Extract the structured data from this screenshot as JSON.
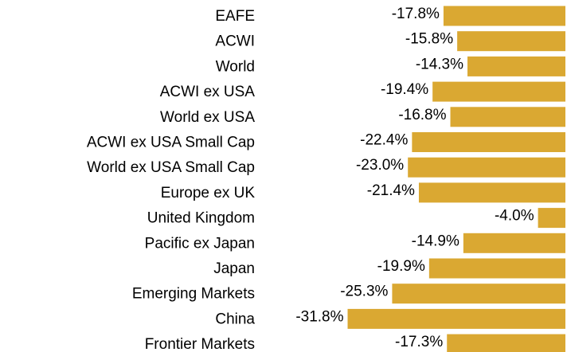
{
  "chart_data": {
    "type": "bar",
    "orientation": "horizontal",
    "categories": [
      "EAFE",
      "ACWI",
      "World",
      "ACWI ex USA",
      "World ex USA",
      "ACWI ex USA Small Cap",
      "World ex USA Small Cap",
      "Europe ex UK",
      "United Kingdom",
      "Pacific ex Japan",
      "Japan",
      "Emerging Markets",
      "China",
      "Frontier Markets"
    ],
    "values": [
      -17.8,
      -15.8,
      -14.3,
      -19.4,
      -16.8,
      -22.4,
      -23.0,
      -21.4,
      -4.0,
      -14.9,
      -19.9,
      -25.3,
      -31.8,
      -17.3
    ],
    "value_labels": [
      "-17.8%",
      "-15.8%",
      "-14.3%",
      "-19.4%",
      "-16.8%",
      "-22.4%",
      "-23.0%",
      "-21.4%",
      "-4.0%",
      "-14.9%",
      "-19.9%",
      "-25.3%",
      "-31.8%",
      "-17.3%"
    ],
    "color": "#daa832"
  }
}
